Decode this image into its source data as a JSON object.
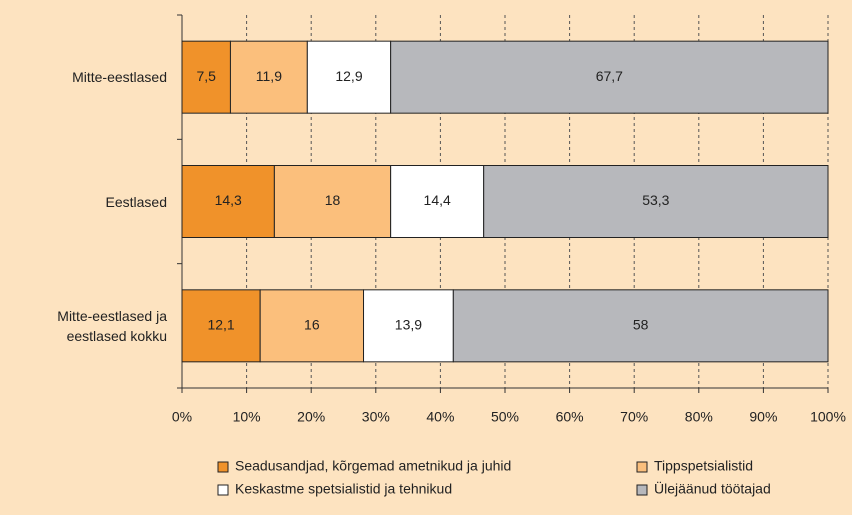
{
  "chart_data": {
    "type": "stacked_barh",
    "categories": [
      "Mitte-eestlased",
      "Eestlased",
      "Mitte-eestlased ja eestlased kokku"
    ],
    "series": [
      {
        "name": "Seadusandjad, kõrgemad ametnikud ja juhid",
        "color": "#f0922a",
        "values": [
          7.5,
          14.3,
          12.1
        ],
        "value_labels": [
          "7,5",
          "14,3",
          "12,1"
        ]
      },
      {
        "name": "Tippspetsialistid",
        "color": "#fbbf7c",
        "values": [
          11.9,
          18,
          16
        ],
        "value_labels": [
          "11,9",
          "18",
          "16"
        ]
      },
      {
        "name": "Keskastme spetsialistid ja tehnikud",
        "color": "#ffffff",
        "values": [
          12.9,
          14.4,
          13.9
        ],
        "value_labels": [
          "12,9",
          "14,4",
          "13,9"
        ]
      },
      {
        "name": "Ülejäänud töötajad",
        "color": "#b7b8bc",
        "values": [
          67.7,
          53.3,
          58
        ],
        "value_labels": [
          "67,7",
          "53,3",
          "58"
        ]
      }
    ],
    "xlim": [
      0,
      100
    ],
    "xticks": [
      {
        "value": 0,
        "label": "0%"
      },
      {
        "value": 10,
        "label": "10%"
      },
      {
        "value": 20,
        "label": "20%"
      },
      {
        "value": 30,
        "label": "30%"
      },
      {
        "value": 40,
        "label": "40%"
      },
      {
        "value": 50,
        "label": "50%"
      },
      {
        "value": 60,
        "label": "60%"
      },
      {
        "value": 70,
        "label": "70%"
      },
      {
        "value": 80,
        "label": "80%"
      },
      {
        "value": 90,
        "label": "90%"
      },
      {
        "value": 100,
        "label": "100%"
      }
    ],
    "grid": true
  }
}
